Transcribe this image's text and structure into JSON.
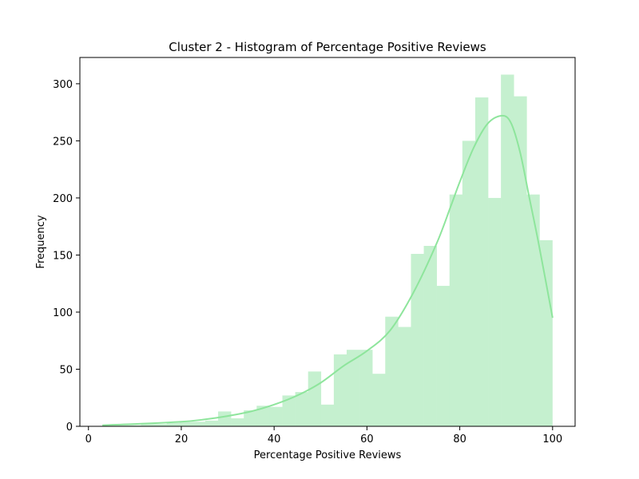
{
  "chart_data": {
    "type": "bar",
    "title": "Cluster 2 - Histogram of Percentage Positive Reviews",
    "xlabel": "Percentage Positive Reviews",
    "ylabel": "Frequency",
    "xlim": [
      -1.85,
      104.85
    ],
    "ylim": [
      0,
      323
    ],
    "xticks": [
      0,
      20,
      40,
      60,
      80,
      100
    ],
    "yticks": [
      0,
      50,
      100,
      150,
      200,
      250,
      300
    ],
    "grid": false,
    "bar_color": "#c5f0cf",
    "kde_color": "#8ee59c",
    "bins": {
      "start": 3,
      "width": 2.77,
      "counts": [
        1,
        1,
        1,
        2,
        2,
        3,
        4,
        4,
        5,
        13,
        7,
        14,
        18,
        17,
        27,
        30,
        48,
        19,
        63,
        67,
        67,
        46,
        96,
        87,
        151,
        158,
        123,
        203,
        250,
        288,
        200,
        308,
        289,
        203,
        163
      ]
    },
    "kde": {
      "x": [
        3,
        10,
        20,
        25,
        30,
        35,
        40,
        45,
        50,
        55,
        60,
        65,
        70,
        75,
        78,
        80,
        83,
        86,
        89,
        91,
        93,
        95,
        97,
        100
      ],
      "y": [
        1,
        2,
        4,
        6,
        9,
        13,
        19,
        27,
        38,
        53,
        66,
        84,
        117,
        160,
        192,
        214,
        244,
        265,
        272,
        266,
        240,
        200,
        160,
        95
      ]
    }
  }
}
